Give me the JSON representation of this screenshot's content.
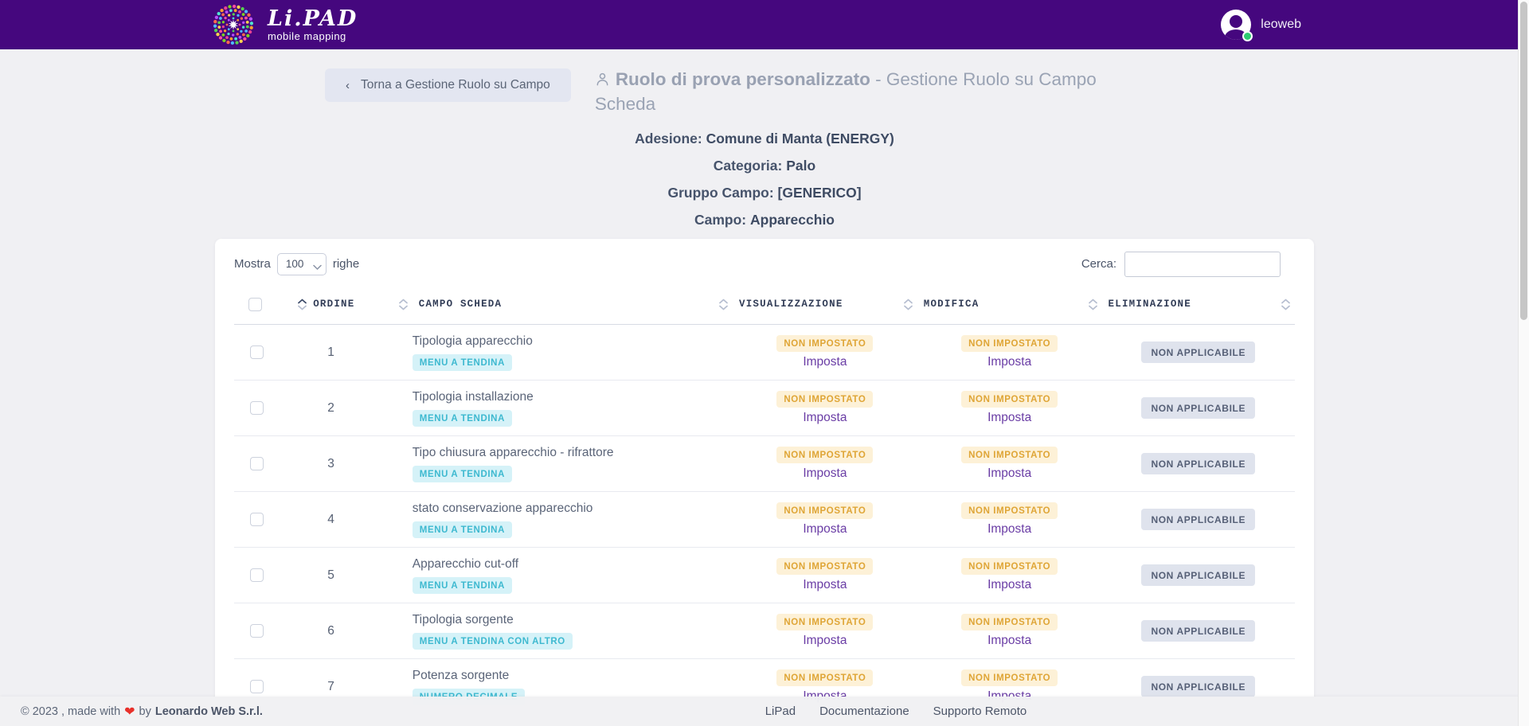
{
  "brand": {
    "name": "Li.PAD",
    "tagline": "mobile mapping"
  },
  "user": {
    "name": "leoweb"
  },
  "page": {
    "back_button_label": "Torna a Gestione Ruolo su Campo",
    "back_chevron": "‹",
    "title_name": "Ruolo di prova personalizzato",
    "title_suffix": " - Gestione Ruolo su Campo Scheda"
  },
  "meta": {
    "items": [
      {
        "label": "Adesione:",
        "value": "Comune di Manta (ENERGY)"
      },
      {
        "label": "Categoria:",
        "value": "Palo"
      },
      {
        "label": "Gruppo Campo:",
        "value": "[GENERICO]"
      },
      {
        "label": "Campo:",
        "value": "Apparecchio"
      }
    ]
  },
  "table": {
    "length_before": "Mostra",
    "length_value": "100",
    "length_after": "righe",
    "search_label": "Cerca:",
    "search_value": "",
    "columns": {
      "ordine": "ORDINE",
      "campo_scheda": "CAMPO SCHEDA",
      "visualizzazione": "VISUALIZZAZIONE",
      "modifica": "MODIFICA",
      "eliminazione": "ELIMINAZIONE"
    },
    "rows": [
      {
        "ordine": "1",
        "campo": "Tipologia apparecchio",
        "tipo": "MENU A TENDINA",
        "vis_status": "NON IMPOSTATO",
        "vis_action": "Imposta",
        "mod_status": "NON IMPOSTATO",
        "mod_action": "Imposta",
        "elim_status": "NON APPLICABILE"
      },
      {
        "ordine": "2",
        "campo": "Tipologia installazione",
        "tipo": "MENU A TENDINA",
        "vis_status": "NON IMPOSTATO",
        "vis_action": "Imposta",
        "mod_status": "NON IMPOSTATO",
        "mod_action": "Imposta",
        "elim_status": "NON APPLICABILE"
      },
      {
        "ordine": "3",
        "campo": "Tipo chiusura apparecchio - rifrattore",
        "tipo": "MENU A TENDINA",
        "vis_status": "NON IMPOSTATO",
        "vis_action": "Imposta",
        "mod_status": "NON IMPOSTATO",
        "mod_action": "Imposta",
        "elim_status": "NON APPLICABILE"
      },
      {
        "ordine": "4",
        "campo": "stato conservazione apparecchio",
        "tipo": "MENU A TENDINA",
        "vis_status": "NON IMPOSTATO",
        "vis_action": "Imposta",
        "mod_status": "NON IMPOSTATO",
        "mod_action": "Imposta",
        "elim_status": "NON APPLICABILE"
      },
      {
        "ordine": "5",
        "campo": "Apparecchio cut-off",
        "tipo": "MENU A TENDINA",
        "vis_status": "NON IMPOSTATO",
        "vis_action": "Imposta",
        "mod_status": "NON IMPOSTATO",
        "mod_action": "Imposta",
        "elim_status": "NON APPLICABILE"
      },
      {
        "ordine": "6",
        "campo": "Tipologia sorgente",
        "tipo": "MENU A TENDINA CON ALTRO",
        "vis_status": "NON IMPOSTATO",
        "vis_action": "Imposta",
        "mod_status": "NON IMPOSTATO",
        "mod_action": "Imposta",
        "elim_status": "NON APPLICABILE"
      },
      {
        "ordine": "7",
        "campo": "Potenza sorgente",
        "tipo": "NUMERO DECIMALE",
        "vis_status": "NON IMPOSTATO",
        "vis_action": "Imposta",
        "mod_status": "NON IMPOSTATO",
        "mod_action": "Imposta",
        "elim_status": "NON APPLICABILE"
      }
    ]
  },
  "footer": {
    "copyright_prefix": "© 2023 , made with",
    "heart": "❤",
    "copyright_mid": "by",
    "company": "Leonardo Web S.r.l.",
    "links": [
      "LiPad",
      "Documentazione",
      "Supporto Remoto"
    ]
  },
  "colors": {
    "brand_purple": "#45077e",
    "status_green": "#2ecc71",
    "badge_type_bg": "#d5f2f8",
    "badge_type_text": "#3eb9d0",
    "badge_warn_bg": "#fdf1d7",
    "badge_warn_text": "#dfa536",
    "badge_na_bg": "#dfe3ed",
    "badge_na_text": "#555f76",
    "action_link": "#6a3da5"
  }
}
